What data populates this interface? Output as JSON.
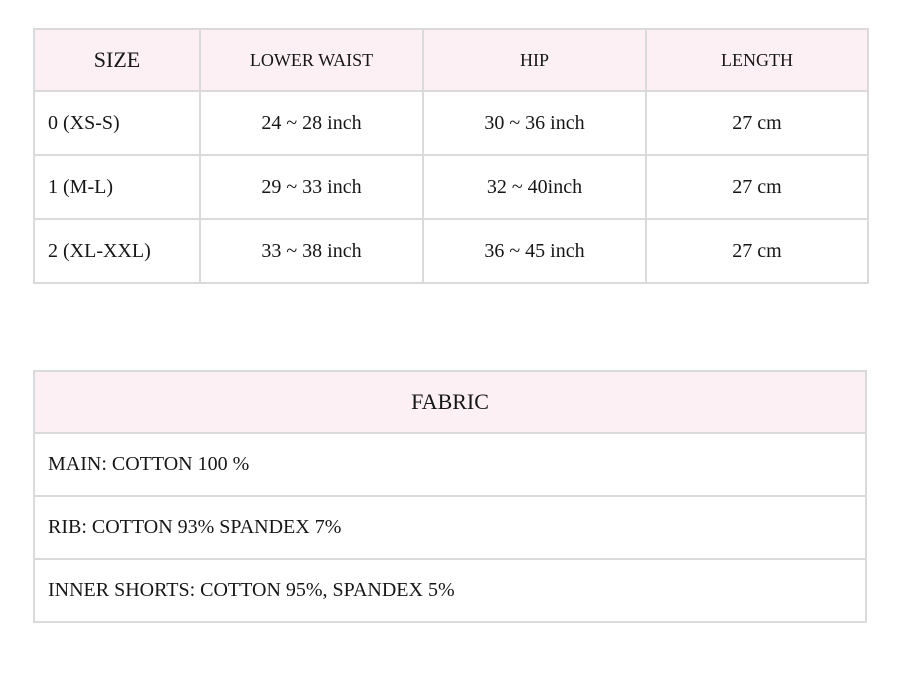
{
  "colors": {
    "header_bg": "#fcf0f5",
    "border": "#dadada",
    "text": "#161616"
  },
  "size_table": {
    "headers": [
      "SIZE",
      "LOWER WAIST",
      "HIP",
      "LENGTH"
    ],
    "rows": [
      [
        "0 (XS-S)",
        "24 ~ 28 inch",
        "30 ~ 36 inch",
        "27 cm"
      ],
      [
        "1 (M-L)",
        "29 ~ 33 inch",
        "32 ~ 40inch",
        "27 cm"
      ],
      [
        "2 (XL-XXL)",
        "33 ~ 38 inch",
        "36 ~ 45 inch",
        "27 cm"
      ]
    ]
  },
  "fabric_table": {
    "header": "FABRIC",
    "rows": [
      "MAIN: COTTON 100 %",
      "RIB: COTTON 93% SPANDEX 7%",
      "INNER SHORTS: COTTON 95%, SPANDEX 5%"
    ]
  }
}
